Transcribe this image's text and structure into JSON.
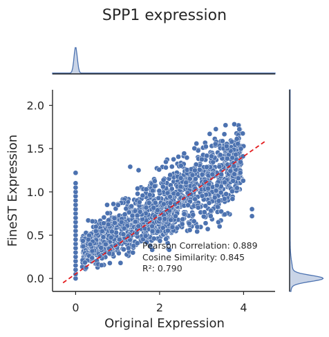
{
  "chart_data": {
    "type": "scatter",
    "title": "SPP1 expression",
    "xlabel": "Original Expression",
    "ylabel": "FineST Expression",
    "xlim": [
      -0.55,
      4.75
    ],
    "ylim": [
      -0.15,
      2.18
    ],
    "xticks": [
      0,
      2,
      4
    ],
    "yticks": [
      0.0,
      0.5,
      1.0,
      1.5,
      2.0
    ],
    "ytick_labels": [
      "0.0",
      "0.5",
      "1.0",
      "1.5",
      "2.0"
    ],
    "grid": false,
    "point_color": "#4c72b0",
    "marginal_color": "#4c72b0",
    "regression_color": "#e31a1c",
    "regression_line": {
      "x": [
        -0.3,
        4.5
      ],
      "y": [
        -0.05,
        1.58
      ]
    },
    "points_cluster": {
      "x_range": [
        0.0,
        4.2
      ],
      "band_lower": [
        [
          0.15,
          0.0
        ],
        [
          1.0,
          0.08
        ],
        [
          2.0,
          0.2
        ],
        [
          3.0,
          0.4
        ],
        [
          3.8,
          0.6
        ],
        [
          4.0,
          0.7
        ]
      ],
      "band_upper": [
        [
          0.15,
          0.62
        ],
        [
          1.0,
          0.97
        ],
        [
          2.0,
          1.38
        ],
        [
          3.0,
          1.78
        ],
        [
          3.8,
          2.02
        ],
        [
          4.0,
          2.02
        ]
      ]
    },
    "points_zero_column": {
      "x": 0.0,
      "y_values": [
        0.0,
        0.05,
        0.1,
        0.15,
        0.2,
        0.25,
        0.3,
        0.35,
        0.4,
        0.45,
        0.5,
        0.55,
        0.6,
        0.65,
        0.7,
        0.75,
        0.8,
        0.85,
        0.9,
        0.95,
        1.0,
        1.05,
        1.1,
        1.22
      ]
    },
    "points_outliers": [
      {
        "x": 1.3,
        "y": 1.29
      },
      {
        "x": 1.5,
        "y": 1.25
      },
      {
        "x": 0.9,
        "y": 0.86
      },
      {
        "x": 0.75,
        "y": 0.85
      },
      {
        "x": 4.2,
        "y": 0.8
      },
      {
        "x": 4.2,
        "y": 0.72
      },
      {
        "x": 3.4,
        "y": 0.65
      },
      {
        "x": 0.3,
        "y": 0.67
      },
      {
        "x": 0.4,
        "y": 0.66
      }
    ],
    "annotations": [
      "Pearson Correlation: 0.889",
      "Cosine Similarity: 0.845",
      "R²: 0.790"
    ]
  }
}
